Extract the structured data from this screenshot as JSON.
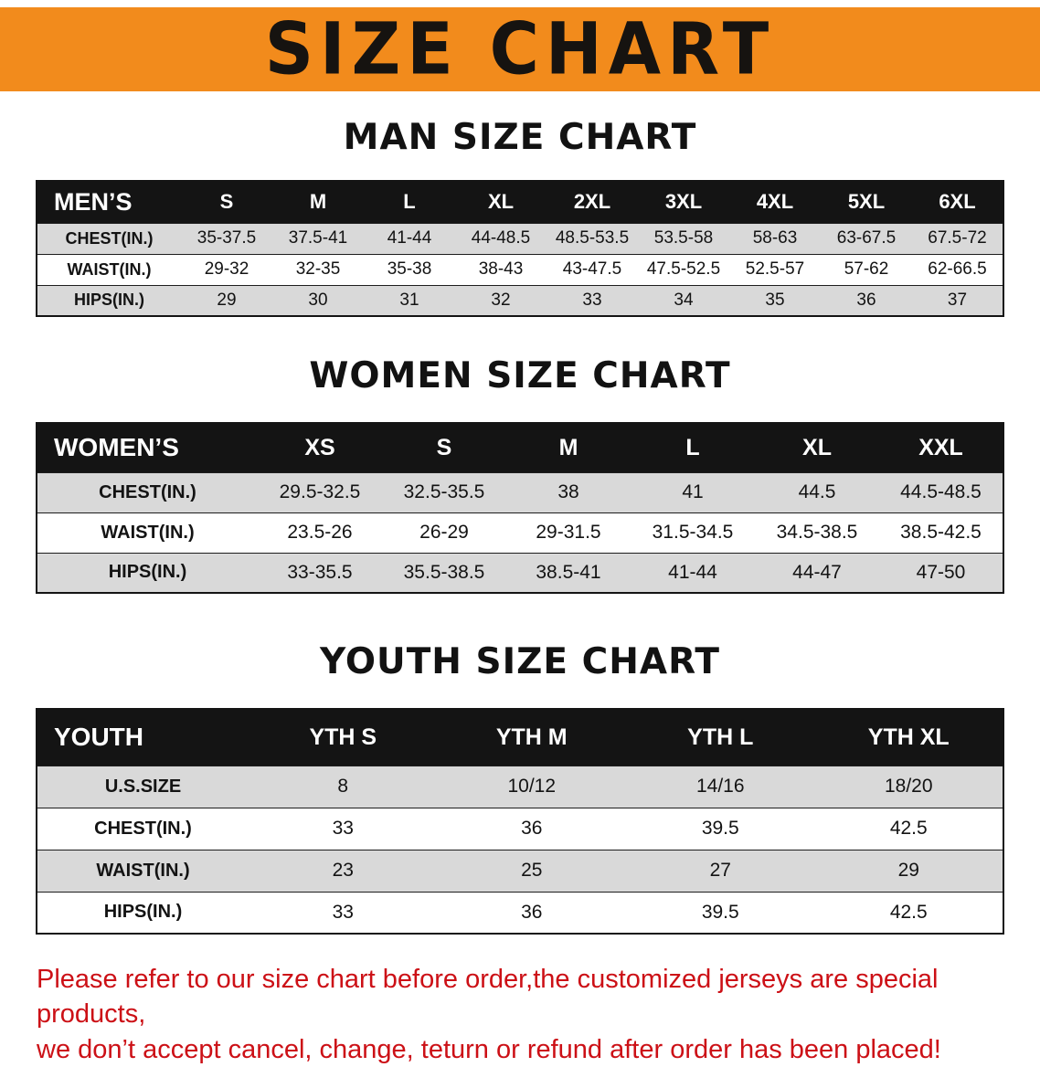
{
  "banner": {
    "title": "SIZE CHART"
  },
  "colors": {
    "banner_bg": "#F28B1C",
    "table_header_bg": "#141414",
    "table_header_text": "#FFFFFF",
    "row_alt_gray": "#D9D9D9",
    "notice_red": "#CC1016"
  },
  "sections": [
    {
      "id": "men",
      "heading": "MAN SIZE CHART",
      "table": {
        "header": [
          "MEN’S",
          "S",
          "M",
          "L",
          "XL",
          "2XL",
          "3XL",
          "4XL",
          "5XL",
          "6XL"
        ],
        "rows": [
          [
            "CHEST(IN.)",
            "35-37.5",
            "37.5-41",
            "41-44",
            "44-48.5",
            "48.5-53.5",
            "53.5-58",
            "58-63",
            "63-67.5",
            "67.5-72"
          ],
          [
            "WAIST(IN.)",
            "29-32",
            "32-35",
            "35-38",
            "38-43",
            "43-47.5",
            "47.5-52.5",
            "52.5-57",
            "57-62",
            "62-66.5"
          ],
          [
            "HIPS(IN.)",
            "29",
            "30",
            "31",
            "32",
            "33",
            "34",
            "35",
            "36",
            "37"
          ]
        ]
      }
    },
    {
      "id": "women",
      "heading": "WOMEN SIZE CHART",
      "table": {
        "header": [
          "WOMEN’S",
          "XS",
          "S",
          "M",
          "L",
          "XL",
          "XXL"
        ],
        "rows": [
          [
            "CHEST(IN.)",
            "29.5-32.5",
            "32.5-35.5",
            "38",
            "41",
            "44.5",
            "44.5-48.5"
          ],
          [
            "WAIST(IN.)",
            "23.5-26",
            "26-29",
            "29-31.5",
            "31.5-34.5",
            "34.5-38.5",
            "38.5-42.5"
          ],
          [
            "HIPS(IN.)",
            "33-35.5",
            "35.5-38.5",
            "38.5-41",
            "41-44",
            "44-47",
            "47-50"
          ]
        ]
      }
    },
    {
      "id": "youth",
      "heading": "YOUTH SIZE CHART",
      "table": {
        "header": [
          "YOUTH",
          "YTH S",
          "YTH M",
          "YTH L",
          "YTH XL"
        ],
        "rows": [
          [
            "U.S.SIZE",
            "8",
            "10/12",
            "14/16",
            "18/20"
          ],
          [
            "CHEST(IN.)",
            "33",
            "36",
            "39.5",
            "42.5"
          ],
          [
            "WAIST(IN.)",
            "23",
            "25",
            "27",
            "29"
          ],
          [
            "HIPS(IN.)",
            "33",
            "36",
            "39.5",
            "42.5"
          ]
        ]
      }
    }
  ],
  "footer": {
    "line1": "Please refer to our size chart before order,the customized jerseys are special products,",
    "line2": "we don’t accept cancel, change, teturn or refund after order has been placed!"
  }
}
